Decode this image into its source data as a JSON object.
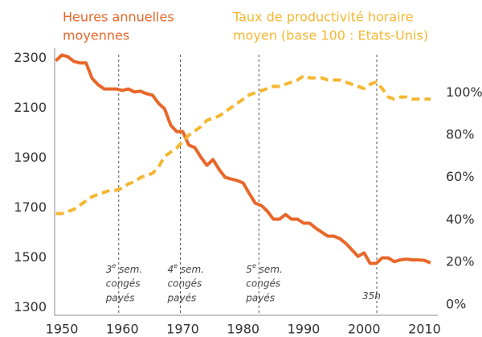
{
  "chart_data": {
    "type": "line",
    "title_left": [
      "Heures annuelles",
      "moyennes"
    ],
    "title_right": [
      "Taux de productivité horaire",
      "moyen (base 100 : Etats-Unis)"
    ],
    "x": [
      1949,
      1950,
      1951,
      1952,
      1953,
      1954,
      1955,
      1956,
      1957,
      1958,
      1959,
      1960,
      1961,
      1962,
      1963,
      1964,
      1965,
      1966,
      1967,
      1968,
      1969,
      1970,
      1971,
      1972,
      1973,
      1974,
      1975,
      1976,
      1977,
      1978,
      1979,
      1980,
      1981,
      1982,
      1983,
      1984,
      1985,
      1986,
      1987,
      1988,
      1989,
      1990,
      1991,
      1992,
      1993,
      1994,
      1995,
      1996,
      1997,
      1998,
      1999,
      2000,
      2001,
      2002,
      2003,
      2004,
      2005,
      2006,
      2007,
      2008,
      2009,
      2010,
      2011
    ],
    "series": [
      {
        "name": "Heures annuelles moyennes",
        "color": "#e8672a",
        "axis": "y",
        "values": [
          2290,
          2313,
          2306,
          2287,
          2281,
          2281,
          2219,
          2194,
          2177,
          2177,
          2177,
          2171,
          2177,
          2165,
          2168,
          2158,
          2152,
          2119,
          2097,
          2032,
          2006,
          2006,
          1952,
          1942,
          1903,
          1871,
          1894,
          1855,
          1823,
          1816,
          1810,
          1800,
          1758,
          1719,
          1710,
          1687,
          1655,
          1655,
          1674,
          1655,
          1655,
          1639,
          1639,
          1619,
          1603,
          1587,
          1587,
          1577,
          1558,
          1532,
          1506,
          1520,
          1478,
          1478,
          1500,
          1500,
          1485,
          1492,
          1495,
          1492,
          1492,
          1490,
          1480
        ]
      },
      {
        "name": "Taux de productivité horaire moyen",
        "color": "#f5b731",
        "axis": "y2",
        "values": [
          43,
          43,
          44,
          45,
          47,
          49,
          51,
          52,
          53,
          54,
          54,
          55,
          57,
          58,
          60,
          61,
          62,
          65,
          70,
          72,
          74,
          77,
          80,
          82,
          84,
          87,
          88,
          89,
          91,
          93,
          95,
          97,
          99,
          100,
          101,
          102,
          103,
          103,
          104,
          105,
          106,
          108,
          107,
          107,
          107,
          106,
          106,
          106,
          105,
          104,
          103,
          102,
          104,
          105,
          102,
          98,
          97,
          98,
          98,
          97,
          97,
          97,
          97
        ]
      }
    ],
    "xlim": [
      1948,
      2012.2
    ],
    "xticks": [
      1950,
      1960,
      1970,
      1980,
      1990,
      2000,
      2010
    ],
    "ylim": [
      1270,
      2340
    ],
    "yticks": [
      1300,
      1500,
      1700,
      1900,
      2100,
      2300
    ],
    "y2lim": [
      -5,
      121
    ],
    "y2ticks": [
      {
        "value": 0,
        "label": "0%"
      },
      {
        "value": 20,
        "label": "20%"
      },
      {
        "value": 40,
        "label": "40%"
      },
      {
        "value": 60,
        "label": "60%"
      },
      {
        "value": 80,
        "label": "80%"
      },
      {
        "value": 100,
        "label": "100%"
      }
    ],
    "annotations": [
      {
        "x": 1959.4,
        "number": "3",
        "sup": "e",
        "rest": " sem.",
        "lines": [
          "congés",
          "payés"
        ]
      },
      {
        "x": 1969.6,
        "number": "4",
        "sup": "e",
        "rest": " sem.",
        "lines": [
          "congés",
          "payés"
        ]
      },
      {
        "x": 1982.6,
        "number": "5",
        "sup": "e",
        "rest": " sem.",
        "lines": [
          "congés",
          "payés"
        ]
      },
      {
        "x": 2002.1,
        "number": "35h",
        "sup": "",
        "rest": "",
        "lines": []
      }
    ]
  }
}
